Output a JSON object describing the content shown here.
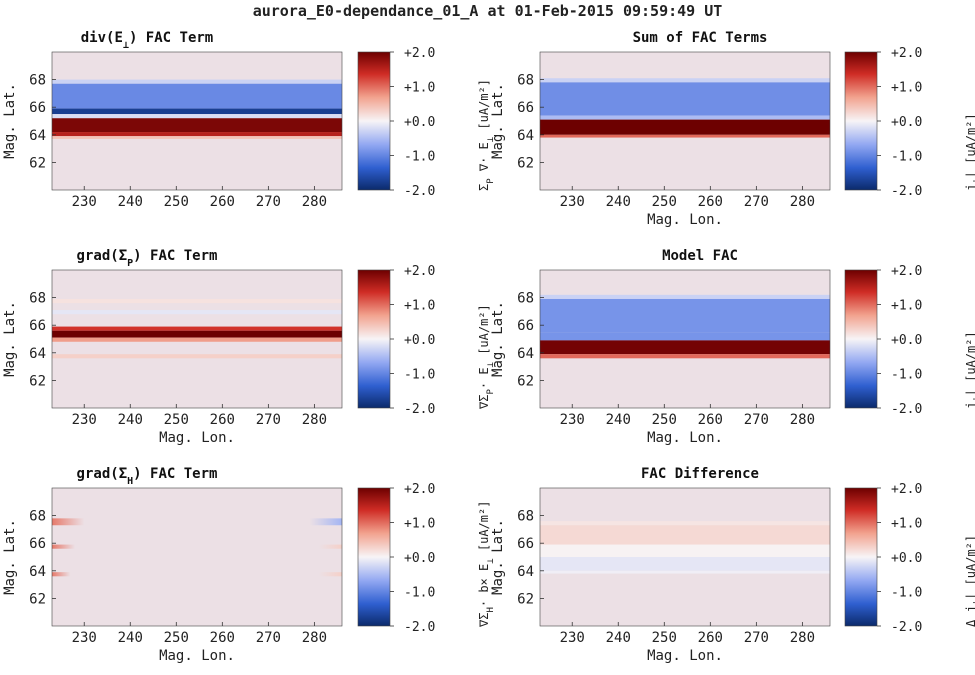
{
  "figure_title": "aurora_E0-dependance_01_A at 01-Feb-2015 09:59:49 UT",
  "colors": {
    "background_panel": "#ece0e5",
    "colormap": [
      "#0b2a6b",
      "#2f5fd0",
      "#93a8f2",
      "#f7f4f6",
      "#f2a38f",
      "#cf2c25",
      "#6d0000"
    ]
  },
  "chart_data": [
    {
      "type": "heatmap",
      "title": "div(E⊥) FAC Term",
      "title_main": "div(E",
      "title_sub": "⊥",
      "title_tail": ") FAC Term",
      "xlabel": "",
      "ylabel": "Mag. Lat.",
      "colorbar_label": "Σ_P ∇· E_⊥ [uA/m²]",
      "xlim": [
        223,
        286
      ],
      "ylim": [
        60,
        70
      ],
      "xticks": [
        "230",
        "240",
        "250",
        "260",
        "270",
        "280"
      ],
      "yticks": [
        "62",
        "64",
        "66",
        "68"
      ],
      "clim": [
        -2,
        2
      ],
      "colorbar_ticks": [
        "+2.0",
        "+1.0",
        "+0.0",
        "-1.0",
        "-2.0"
      ],
      "bands": [
        {
          "lat_min": 67.7,
          "lat_max": 68.0,
          "value": -0.3
        },
        {
          "lat_min": 65.9,
          "lat_max": 67.7,
          "value": -0.95
        },
        {
          "lat_min": 65.5,
          "lat_max": 65.9,
          "value": -1.75
        },
        {
          "lat_min": 65.2,
          "lat_max": 65.5,
          "value": -0.2
        },
        {
          "lat_min": 64.2,
          "lat_max": 65.2,
          "value": 1.9
        },
        {
          "lat_min": 63.9,
          "lat_max": 64.2,
          "value": 1.5
        },
        {
          "lat_min": 63.7,
          "lat_max": 63.9,
          "value": 0.4
        }
      ]
    },
    {
      "type": "heatmap",
      "title": "Sum of FAC Terms",
      "title_main": "Sum of FAC Terms",
      "title_sub": "",
      "title_tail": "",
      "xlabel": "Mag. Lon.",
      "ylabel": "Mag. Lat.",
      "colorbar_label": "j_|| [uA/m²]",
      "xlim": [
        223,
        286
      ],
      "ylim": [
        60,
        70
      ],
      "xticks": [
        "230",
        "240",
        "250",
        "260",
        "270",
        "280"
      ],
      "yticks": [
        "62",
        "64",
        "66",
        "68"
      ],
      "clim": [
        -2,
        2
      ],
      "colorbar_ticks": [
        "+2.0",
        "+1.0",
        "+0.0",
        "-1.0",
        "-2.0"
      ],
      "bands": [
        {
          "lat_min": 67.8,
          "lat_max": 68.1,
          "value": -0.3
        },
        {
          "lat_min": 65.4,
          "lat_max": 67.8,
          "value": -0.9
        },
        {
          "lat_min": 65.1,
          "lat_max": 65.4,
          "value": -0.5
        },
        {
          "lat_min": 64.0,
          "lat_max": 65.1,
          "value": 2.0
        },
        {
          "lat_min": 63.8,
          "lat_max": 64.0,
          "value": 1.0
        }
      ]
    },
    {
      "type": "heatmap",
      "title": "grad(Σ_P) FAC Term",
      "title_main": "grad(Σ",
      "title_sub": "P",
      "title_tail": ") FAC Term",
      "xlabel": "Mag. Lon.",
      "ylabel": "Mag. Lat.",
      "colorbar_label": "∇Σ_P· E_⊥ [uA/m²]",
      "xlim": [
        223,
        286
      ],
      "ylim": [
        60,
        70
      ],
      "xticks": [
        "230",
        "240",
        "250",
        "260",
        "270",
        "280"
      ],
      "yticks": [
        "62",
        "64",
        "66",
        "68"
      ],
      "clim": [
        -2,
        2
      ],
      "colorbar_ticks": [
        "+2.0",
        "+1.0",
        "+0.0",
        "-1.0",
        "-2.0"
      ],
      "bands": [
        {
          "lat_min": 67.6,
          "lat_max": 67.9,
          "value": 0.15
        },
        {
          "lat_min": 66.8,
          "lat_max": 67.1,
          "value": -0.12
        },
        {
          "lat_min": 65.6,
          "lat_max": 65.9,
          "value": 1.3
        },
        {
          "lat_min": 65.1,
          "lat_max": 65.6,
          "value": 2.0
        },
        {
          "lat_min": 64.8,
          "lat_max": 65.1,
          "value": 0.7
        },
        {
          "lat_min": 63.6,
          "lat_max": 63.9,
          "value": 0.3
        }
      ]
    },
    {
      "type": "heatmap",
      "title": "Model FAC",
      "title_main": "Model FAC",
      "title_sub": "",
      "title_tail": "",
      "xlabel": "Mag. Lon.",
      "ylabel": "Mag. Lat.",
      "colorbar_label": "j_|| [uA/m²]",
      "xlim": [
        223,
        286
      ],
      "ylim": [
        60,
        70
      ],
      "xticks": [
        "230",
        "240",
        "250",
        "260",
        "270",
        "280"
      ],
      "yticks": [
        "62",
        "64",
        "66",
        "68"
      ],
      "clim": [
        -2,
        2
      ],
      "colorbar_ticks": [
        "+2.0",
        "+1.0",
        "+0.0",
        "-1.0",
        "-2.0"
      ],
      "bands": [
        {
          "lat_min": 67.9,
          "lat_max": 68.2,
          "value": -0.3
        },
        {
          "lat_min": 65.5,
          "lat_max": 67.9,
          "value": -0.85
        },
        {
          "lat_min": 64.9,
          "lat_max": 65.5,
          "value": -0.85
        },
        {
          "lat_min": 63.9,
          "lat_max": 64.9,
          "value": 1.95
        },
        {
          "lat_min": 63.6,
          "lat_max": 63.9,
          "value": 1.0
        }
      ]
    },
    {
      "type": "heatmap",
      "title": "grad(Σ_H) FAC Term",
      "title_main": "grad(Σ",
      "title_sub": "H",
      "title_tail": ") FAC Term",
      "xlabel": "Mag. Lon.",
      "ylabel": "Mag. Lat.",
      "colorbar_label": "∇Σ_H· b× E_⊥ [uA/m²]",
      "xlim": [
        223,
        286
      ],
      "ylim": [
        60,
        70
      ],
      "xticks": [
        "230",
        "240",
        "250",
        "260",
        "270",
        "280"
      ],
      "yticks": [
        "62",
        "64",
        "66",
        "68"
      ],
      "clim": [
        -2,
        2
      ],
      "colorbar_ticks": [
        "+2.0",
        "+1.0",
        "+0.0",
        "-1.0",
        "-2.0"
      ],
      "bands": [],
      "patches": [
        {
          "lon_min": 223,
          "lon_max": 230,
          "lat_min": 67.3,
          "lat_max": 67.8,
          "value": 0.9
        },
        {
          "lon_min": 223,
          "lon_max": 228,
          "lat_min": 65.6,
          "lat_max": 65.9,
          "value": -0.35
        },
        {
          "lon_min": 223,
          "lon_max": 227,
          "lat_min": 63.6,
          "lat_max": 63.9,
          "value": -0.25
        },
        {
          "lon_min": 279,
          "lon_max": 286,
          "lat_min": 67.3,
          "lat_max": 67.8,
          "value": -0.55
        },
        {
          "lon_min": 281,
          "lon_max": 286,
          "lat_min": 65.6,
          "lat_max": 65.9,
          "value": 0.3
        },
        {
          "lon_min": 281,
          "lon_max": 286,
          "lat_min": 63.6,
          "lat_max": 63.9,
          "value": 0.25
        }
      ]
    },
    {
      "type": "heatmap",
      "title": "FAC Difference",
      "title_main": "FAC Difference",
      "title_sub": "",
      "title_tail": "",
      "xlabel": "Mag. Lon.",
      "ylabel": "Mag. Lat.",
      "colorbar_label": "Δ j_|| [uA/m²]",
      "xlim": [
        223,
        286
      ],
      "ylim": [
        60,
        70
      ],
      "xticks": [
        "230",
        "240",
        "250",
        "260",
        "270",
        "280"
      ],
      "yticks": [
        "62",
        "64",
        "66",
        "68"
      ],
      "clim": [
        -2,
        2
      ],
      "colorbar_ticks": [
        "+2.0",
        "+1.0",
        "+0.0",
        "-1.0",
        "-2.0"
      ],
      "bands": [
        {
          "lat_min": 67.3,
          "lat_max": 67.6,
          "value": 0.12
        },
        {
          "lat_min": 65.9,
          "lat_max": 67.3,
          "value": 0.22
        },
        {
          "lat_min": 65.0,
          "lat_max": 65.9,
          "value": 0.02
        },
        {
          "lat_min": 64.0,
          "lat_max": 65.0,
          "value": -0.12
        },
        {
          "lat_min": 63.8,
          "lat_max": 64.0,
          "value": -0.05
        }
      ]
    }
  ]
}
